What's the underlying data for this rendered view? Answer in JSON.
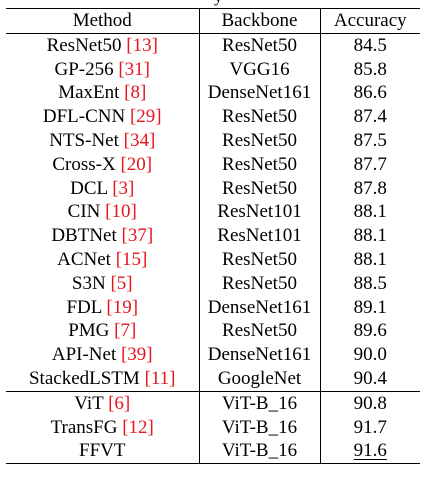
{
  "caption_fragment": "y",
  "table": {
    "headers": {
      "method": "Method",
      "backbone": "Backbone",
      "accuracy": "Accuracy"
    },
    "rows": [
      {
        "method": "ResNet50",
        "ref": "[13]",
        "backbone": "ResNet50",
        "accuracy": "84.5"
      },
      {
        "method": "GP-256",
        "ref": "[31]",
        "backbone": "VGG16",
        "accuracy": "85.8"
      },
      {
        "method": "MaxEnt",
        "ref": "[8]",
        "backbone": "DenseNet161",
        "accuracy": "86.6"
      },
      {
        "method": "DFL-CNN",
        "ref": "[29]",
        "backbone": "ResNet50",
        "accuracy": "87.4"
      },
      {
        "method": "NTS-Net",
        "ref": "[34]",
        "backbone": "ResNet50",
        "accuracy": "87.5"
      },
      {
        "method": "Cross-X",
        "ref": "[20]",
        "backbone": "ResNet50",
        "accuracy": "87.7"
      },
      {
        "method": "DCL",
        "ref": "[3]",
        "backbone": "ResNet50",
        "accuracy": "87.8"
      },
      {
        "method": "CIN",
        "ref": "[10]",
        "backbone": "ResNet101",
        "accuracy": "88.1"
      },
      {
        "method": "DBTNet",
        "ref": "[37]",
        "backbone": "ResNet101",
        "accuracy": "88.1"
      },
      {
        "method": "ACNet",
        "ref": "[15]",
        "backbone": "ResNet50",
        "accuracy": "88.1"
      },
      {
        "method": "S3N",
        "ref": "[5]",
        "backbone": "ResNet50",
        "accuracy": "88.5"
      },
      {
        "method": "FDL",
        "ref": "[19]",
        "backbone": "DenseNet161",
        "accuracy": "89.1"
      },
      {
        "method": "PMG",
        "ref": "[7]",
        "backbone": "ResNet50",
        "accuracy": "89.6"
      },
      {
        "method": "API-Net",
        "ref": "[39]",
        "backbone": "DenseNet161",
        "accuracy": "90.0"
      },
      {
        "method": "StackedLSTM",
        "ref": "[11]",
        "backbone": "GoogleNet",
        "accuracy": "90.4"
      },
      {
        "method": "ViT",
        "ref": "[6]",
        "backbone": "ViT-B_16",
        "accuracy": "90.8"
      },
      {
        "method": "TransFG",
        "ref": "[12]",
        "backbone": "ViT-B_16",
        "accuracy": "91.7"
      },
      {
        "method": "FFVT",
        "ref": "",
        "backbone": "ViT-B_16",
        "accuracy": "91.6"
      }
    ]
  },
  "colors": {
    "citation": "#e8141e",
    "text": "#000000",
    "rules": "#000000"
  }
}
